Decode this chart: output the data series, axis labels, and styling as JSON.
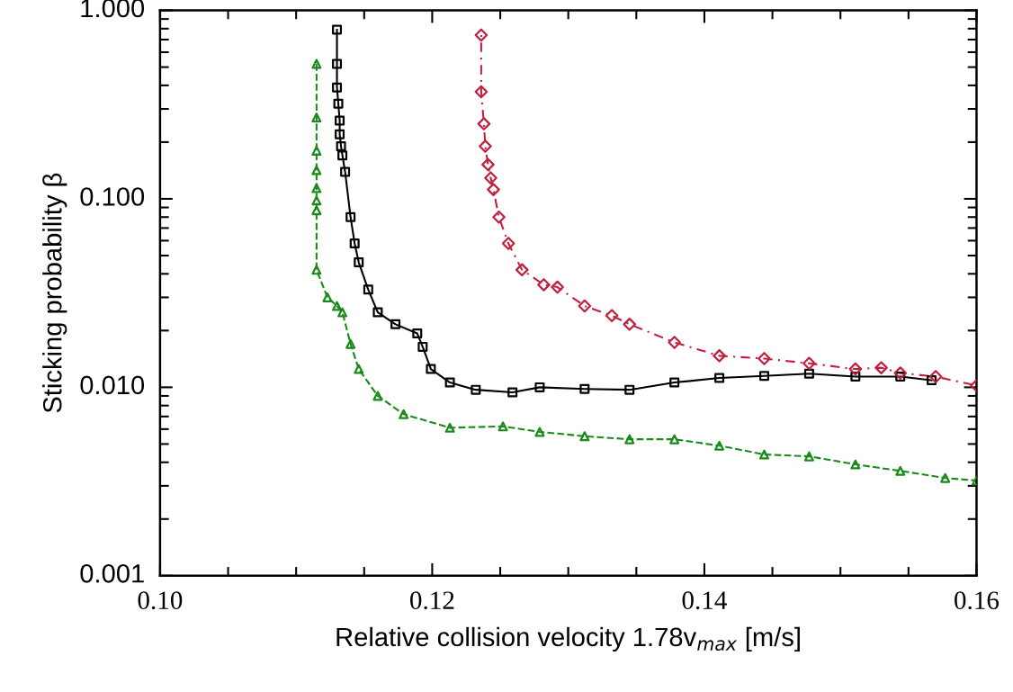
{
  "chart_data": {
    "type": "line",
    "xlabel": "Relative collision velocity 1.78v$_{max}$ [m/s]",
    "ylabel": "Sticking probability β",
    "log": "y",
    "xlim": [
      0.1,
      0.16
    ],
    "ylim": [
      0.001,
      1.0
    ],
    "xticks": [
      {
        "value": 0.1,
        "label": "0.10"
      },
      {
        "value": 0.12,
        "label": "0.12"
      },
      {
        "value": 0.14,
        "label": "0.14"
      },
      {
        "value": 0.16,
        "label": "0.16"
      }
    ],
    "yticks": [
      {
        "value": 0.001,
        "label": "0.001"
      },
      {
        "value": 0.01,
        "label": "0.010"
      },
      {
        "value": 0.1,
        "label": "0.100"
      },
      {
        "value": 1.0,
        "label": "1.000"
      }
    ],
    "grid": false,
    "series": [
      {
        "color": "#1a8a1a",
        "marker": "triangle",
        "line_style": "dashed",
        "x": [
          0.1115,
          0.1115,
          0.1115,
          0.1115,
          0.1115,
          0.1115,
          0.1115,
          0.1115,
          0.1123,
          0.113,
          0.1134,
          0.114,
          0.1146,
          0.116,
          0.1179,
          0.1213,
          0.1252,
          0.1279,
          0.1312,
          0.1345,
          0.1378,
          0.1411,
          0.1444,
          0.1477,
          0.1511,
          0.1544,
          0.1577,
          0.16
        ],
        "values": [
          0.52,
          0.27,
          0.18,
          0.142,
          0.114,
          0.098,
          0.087,
          0.042,
          0.03,
          0.027,
          0.025,
          0.017,
          0.0125,
          0.009,
          0.0072,
          0.0061,
          0.0062,
          0.0058,
          0.0055,
          0.0053,
          0.0053,
          0.0049,
          0.0044,
          0.0043,
          0.0039,
          0.0036,
          0.0033,
          0.0032
        ]
      },
      {
        "color": "#000000",
        "marker": "square",
        "line_style": "solid",
        "x": [
          0.113,
          0.113,
          0.113,
          0.1131,
          0.1132,
          0.1132,
          0.1133,
          0.1134,
          0.1136,
          0.114,
          0.1143,
          0.1146,
          0.1153,
          0.116,
          0.1173,
          0.1189,
          0.1193,
          0.1199,
          0.1213,
          0.1232,
          0.1259,
          0.1279,
          0.1312,
          0.1345,
          0.1378,
          0.1411,
          0.1444,
          0.1477,
          0.1511,
          0.1544,
          0.1567
        ],
        "values": [
          0.79,
          0.52,
          0.39,
          0.32,
          0.26,
          0.22,
          0.19,
          0.17,
          0.139,
          0.08,
          0.058,
          0.046,
          0.033,
          0.025,
          0.0216,
          0.0193,
          0.0164,
          0.0125,
          0.0106,
          0.0097,
          0.0094,
          0.01,
          0.0098,
          0.0097,
          0.0106,
          0.0112,
          0.0115,
          0.0118,
          0.0114,
          0.0114,
          0.0109
        ]
      },
      {
        "color": "#c0203f",
        "marker": "diamond",
        "line_style": "dotted",
        "x": [
          0.1236,
          0.1236,
          0.1238,
          0.1239,
          0.1241,
          0.1243,
          0.1245,
          0.1249,
          0.1256,
          0.1266,
          0.1282,
          0.1292,
          0.1312,
          0.1332,
          0.1345,
          0.1378,
          0.1411,
          0.1444,
          0.1477,
          0.1511,
          0.153,
          0.1544,
          0.157,
          0.16
        ],
        "values": [
          0.74,
          0.37,
          0.25,
          0.19,
          0.152,
          0.129,
          0.112,
          0.08,
          0.058,
          0.042,
          0.035,
          0.034,
          0.027,
          0.024,
          0.0216,
          0.0173,
          0.0147,
          0.0142,
          0.0134,
          0.0125,
          0.0127,
          0.0119,
          0.0114,
          0.0102
        ]
      }
    ]
  }
}
